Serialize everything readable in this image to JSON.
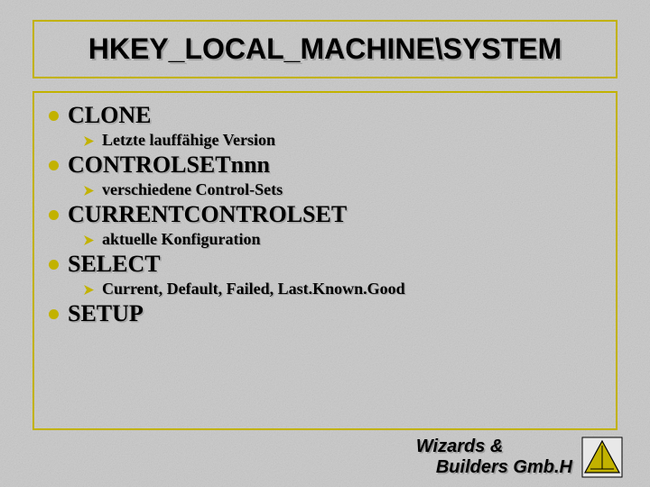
{
  "colors": {
    "bg_base": "#c8c8c8",
    "border": "#c2b200",
    "bullet_dot": "#c2b200",
    "arrow": "#c2b200",
    "text": "#000000",
    "footer_text": "#000000",
    "logo_triangle": "#c2b200",
    "logo_border": "#000000",
    "logo_bg": "#e8e8e8"
  },
  "typography": {
    "title_fontsize": 32,
    "lvl1_fontsize": 26,
    "lvl2_fontsize": 18,
    "footer_fontsize": 20
  },
  "title": "HKEY_LOCAL_MACHINE\\SYSTEM",
  "items": [
    {
      "label": "CLONE",
      "sub": [
        "Letzte lauffähige Version"
      ]
    },
    {
      "label": "CONTROLSETnnn",
      "sub": [
        "verschiedene Control-Sets"
      ]
    },
    {
      "label": "CURRENTCONTROLSET",
      "sub": [
        "aktuelle Konfiguration"
      ]
    },
    {
      "label": "SELECT",
      "sub": [
        "Current, Default, Failed, Last.Known.Good"
      ]
    },
    {
      "label": "SETUP",
      "sub": []
    }
  ],
  "footer": {
    "line1": "Wizards &",
    "line2": "Builders Gmb.H"
  }
}
